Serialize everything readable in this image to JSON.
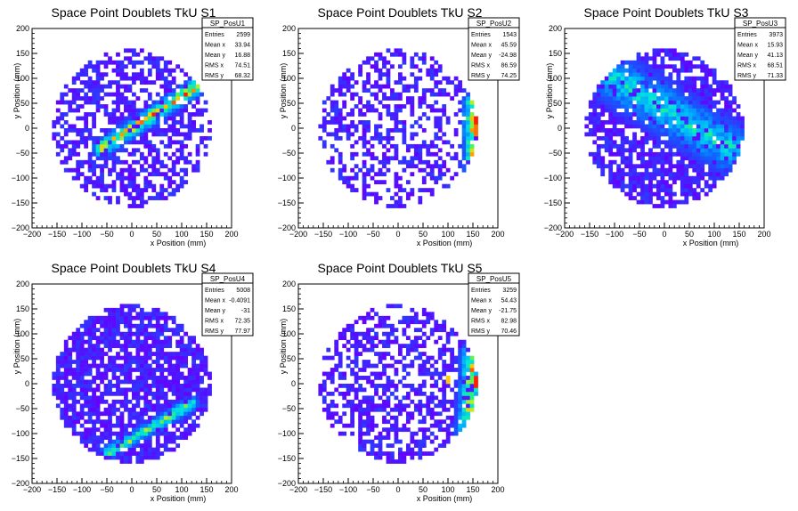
{
  "chart_data": [
    {
      "type": "heatmap",
      "title": "Space Point Doublets TkU S1",
      "xlabel": "x Position (mm)",
      "ylabel": "y Position (mm)",
      "xlim": [
        -200,
        200
      ],
      "ylim": [
        -200,
        200
      ],
      "x_ticks": [
        "−200",
        "−150",
        "−100",
        "−50",
        "0",
        "50",
        "100",
        "150",
        "200"
      ],
      "y_ticks": [
        "200",
        "150",
        "100",
        "50",
        "0",
        "−50",
        "−100",
        "−150",
        "−200"
      ],
      "stats": {
        "name": "SP_PosU1",
        "rows": [
          {
            "label": "Entries",
            "value": "2599"
          },
          {
            "label": "Mean x",
            "value": "33.94"
          },
          {
            "label": "Mean y",
            "value": "16.88"
          },
          {
            "label": "RMS x",
            "value": "74.51"
          },
          {
            "label": "RMS y",
            "value": "68.32"
          }
        ]
      },
      "pattern": {
        "fill_prob": 0.55,
        "band": {
          "x0": -60,
          "y0": -40,
          "x1": 140,
          "y1": 90,
          "width": 22,
          "strength": 0.9
        },
        "hot": []
      }
    },
    {
      "type": "heatmap",
      "title": "Space Point Doublets TkU S2",
      "xlabel": "x Position (mm)",
      "ylabel": "y Position (mm)",
      "xlim": [
        -200,
        200
      ],
      "ylim": [
        -200,
        200
      ],
      "x_ticks": [
        "−200",
        "−150",
        "−100",
        "−50",
        "0",
        "50",
        "100",
        "150",
        "200"
      ],
      "y_ticks": [
        "200",
        "150",
        "100",
        "50",
        "0",
        "−50",
        "−100",
        "−150",
        "−200"
      ],
      "stats": {
        "name": "SP_PosU2",
        "rows": [
          {
            "label": "Entries",
            "value": "1543"
          },
          {
            "label": "Mean x",
            "value": "45.59"
          },
          {
            "label": "Mean y",
            "value": "-24.98"
          },
          {
            "label": "RMS x",
            "value": "86.59"
          },
          {
            "label": "RMS y",
            "value": "74.25"
          }
        ]
      },
      "pattern": {
        "fill_prob": 0.45,
        "band": {
          "x0": 150,
          "y0": -100,
          "x1": 150,
          "y1": 50,
          "width": 25,
          "strength": 0.85
        },
        "hot": [
          {
            "x": 160,
            "y": 15,
            "v": 1.0
          },
          {
            "x": 160,
            "y": -5,
            "v": 0.95
          }
        ]
      }
    },
    {
      "type": "heatmap",
      "title": "Space Point Doublets TkU S3",
      "xlabel": "x Position (mm)",
      "ylabel": "y Position (mm)",
      "xlim": [
        -200,
        200
      ],
      "ylim": [
        -200,
        200
      ],
      "x_ticks": [
        "−200",
        "−150",
        "−100",
        "−50",
        "0",
        "50",
        "100",
        "150",
        "200"
      ],
      "y_ticks": [
        "200",
        "150",
        "100",
        "50",
        "0",
        "−50",
        "−100",
        "−150",
        "−200"
      ],
      "stats": {
        "name": "SP_PosU3",
        "rows": [
          {
            "label": "Entries",
            "value": "3973"
          },
          {
            "label": "Mean x",
            "value": "15.93"
          },
          {
            "label": "Mean y",
            "value": "41.13"
          },
          {
            "label": "RMS x",
            "value": "68.51"
          },
          {
            "label": "RMS y",
            "value": "71.33"
          }
        ]
      },
      "pattern": {
        "fill_prob": 0.72,
        "band": {
          "x0": -100,
          "y0": 100,
          "x1": 130,
          "y1": -40,
          "width": 60,
          "strength": 0.55
        },
        "hot": []
      }
    },
    {
      "type": "heatmap",
      "title": "Space Point Doublets TkU S4",
      "xlabel": "x Position (mm)",
      "ylabel": "y Position (mm)",
      "xlim": [
        -200,
        200
      ],
      "ylim": [
        -200,
        200
      ],
      "x_ticks": [
        "−200",
        "−150",
        "−100",
        "−50",
        "0",
        "50",
        "100",
        "150",
        "200"
      ],
      "y_ticks": [
        "200",
        "150",
        "100",
        "50",
        "0",
        "−50",
        "−100",
        "−150",
        "−200"
      ],
      "stats": {
        "name": "SP_PosU4",
        "rows": [
          {
            "label": "Entries",
            "value": "5008"
          },
          {
            "label": "Mean x",
            "value": "-0.4091"
          },
          {
            "label": "Mean y",
            "value": "-31"
          },
          {
            "label": "RMS x",
            "value": "72.35"
          },
          {
            "label": "RMS y",
            "value": "77.97"
          }
        ]
      },
      "pattern": {
        "fill_prob": 0.8,
        "band": {
          "x0": -50,
          "y0": -140,
          "x1": 120,
          "y1": -40,
          "width": 18,
          "strength": 0.75
        },
        "hot": []
      }
    },
    {
      "type": "heatmap",
      "title": "Space Point Doublets TkU S5",
      "xlabel": "x Position (mm)",
      "ylabel": "y Position (mm)",
      "xlim": [
        -200,
        200
      ],
      "ylim": [
        -200,
        200
      ],
      "x_ticks": [
        "−200",
        "−150",
        "−100",
        "−50",
        "0",
        "50",
        "100",
        "150",
        "200"
      ],
      "y_ticks": [
        "200",
        "150",
        "100",
        "50",
        "0",
        "−50",
        "−100",
        "−150",
        "−200"
      ],
      "stats": {
        "name": "SP_PosU5",
        "rows": [
          {
            "label": "Entries",
            "value": "3259"
          },
          {
            "label": "Mean x",
            "value": "54.43"
          },
          {
            "label": "Mean y",
            "value": "-21.75"
          },
          {
            "label": "RMS x",
            "value": "82.98"
          },
          {
            "label": "RMS y",
            "value": "70.46"
          }
        ]
      },
      "pattern": {
        "fill_prob": 0.55,
        "band": {
          "x0": 140,
          "y0": -100,
          "x1": 150,
          "y1": 60,
          "width": 30,
          "strength": 0.8
        },
        "hot": [
          {
            "x": 160,
            "y": 5,
            "v": 1.0
          },
          {
            "x": 100,
            "y": 10,
            "v": 0.9
          }
        ]
      }
    }
  ]
}
